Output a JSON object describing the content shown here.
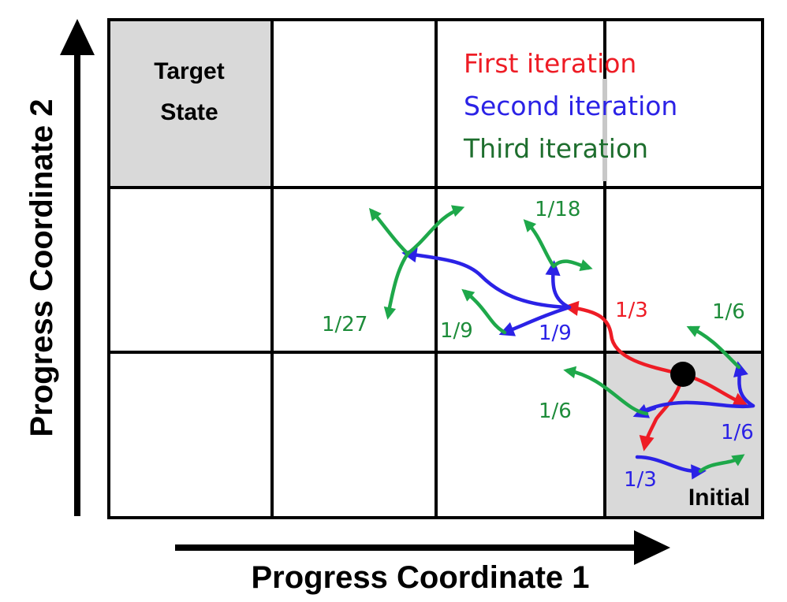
{
  "axes": {
    "x_label": "Progress Coordinate 1",
    "y_label": "Progress Coordinate 2"
  },
  "grid": {
    "rows": 3,
    "cols": 4
  },
  "cells": {
    "target_line1": "Target",
    "target_line2": "State",
    "initial": "Initial"
  },
  "colors": {
    "first": "#ee1c25",
    "second": "#2b22e6",
    "third": "#1e8c3a",
    "third_text": "#1e6e2e",
    "shade": "#d9d9d9"
  },
  "legend": {
    "first": "First iteration",
    "second": "Second iteration",
    "third": "Third iteration"
  },
  "weights": {
    "red_1_3": "1/3",
    "blue_1_9": "1/9",
    "green_1_9": "1/9",
    "green_1_18": "1/18",
    "green_1_27": "1/27",
    "green_1_6_top": "1/6",
    "green_1_6_left": "1/6",
    "blue_1_6": "1/6",
    "blue_1_3": "1/3"
  }
}
